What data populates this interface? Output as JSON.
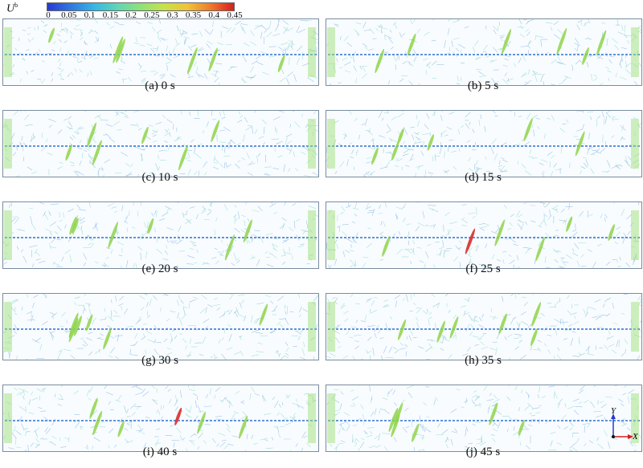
{
  "colorbar": {
    "label": "U",
    "label_sup": "b",
    "ticks": [
      "0",
      "0.05",
      "0.1",
      "0.15",
      "0.2",
      "0.25",
      "0.3",
      "0.35",
      "0.4",
      "0.45"
    ],
    "colors": [
      "#2a3ad0",
      "#2f78e0",
      "#35b6e6",
      "#5fd6b4",
      "#8ee27a",
      "#c7e24a",
      "#f0c33a",
      "#f07a2c",
      "#d81e1e"
    ]
  },
  "panels": [
    {
      "caption": "(a) 0 s"
    },
    {
      "caption": "(b) 5 s"
    },
    {
      "caption": "(c) 10 s"
    },
    {
      "caption": "(d) 15 s"
    },
    {
      "caption": "(e) 20 s"
    },
    {
      "caption": "(f) 25 s"
    },
    {
      "caption": "(g) 30 s"
    },
    {
      "caption": "(h) 35 s"
    },
    {
      "caption": "(i) 40 s"
    },
    {
      "caption": "(j) 45 s"
    }
  ],
  "axes": {
    "y": "Y",
    "x": "X"
  }
}
